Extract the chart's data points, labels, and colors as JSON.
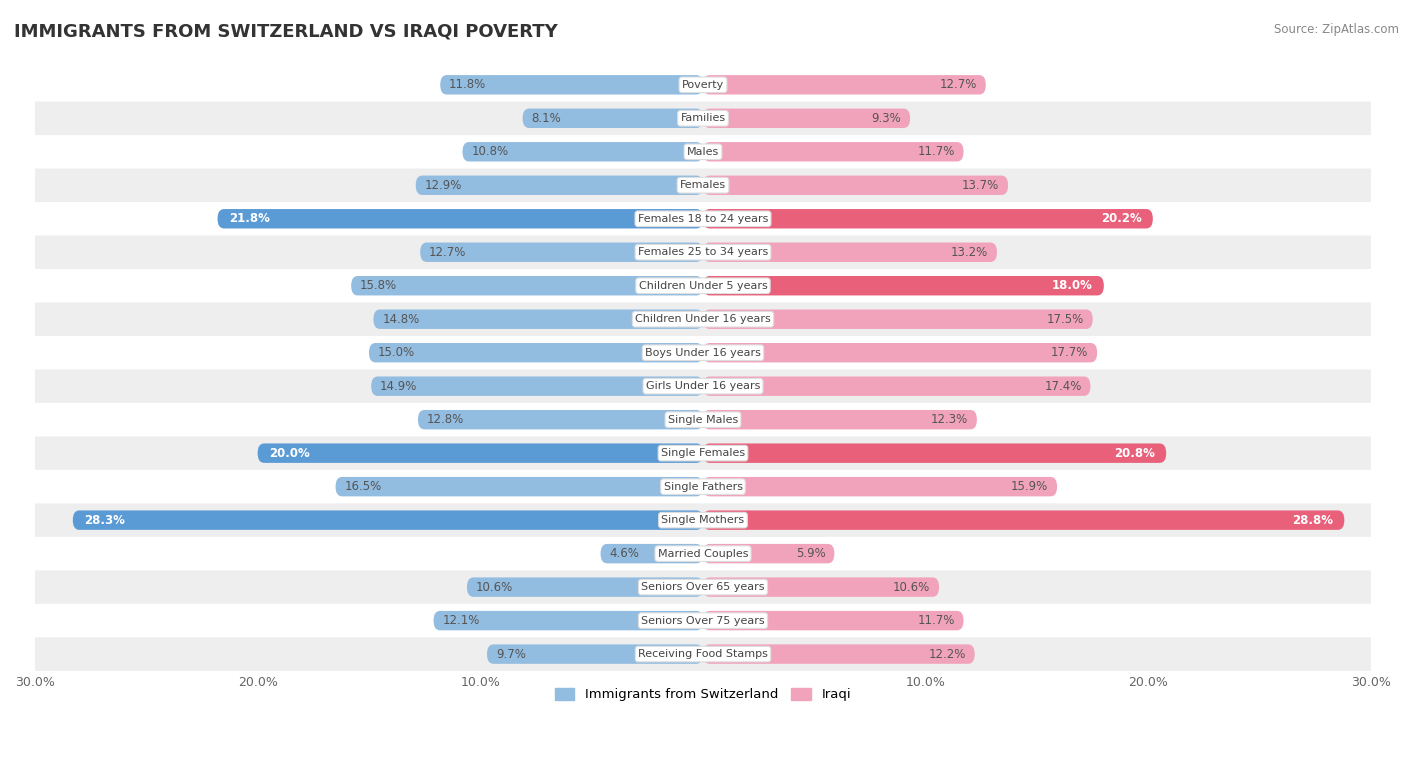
{
  "title": "IMMIGRANTS FROM SWITZERLAND VS IRAQI POVERTY",
  "source": "Source: ZipAtlas.com",
  "categories": [
    "Poverty",
    "Families",
    "Males",
    "Females",
    "Females 18 to 24 years",
    "Females 25 to 34 years",
    "Children Under 5 years",
    "Children Under 16 years",
    "Boys Under 16 years",
    "Girls Under 16 years",
    "Single Males",
    "Single Females",
    "Single Fathers",
    "Single Mothers",
    "Married Couples",
    "Seniors Over 65 years",
    "Seniors Over 75 years",
    "Receiving Food Stamps"
  ],
  "swiss_values": [
    11.8,
    8.1,
    10.8,
    12.9,
    21.8,
    12.7,
    15.8,
    14.8,
    15.0,
    14.9,
    12.8,
    20.0,
    16.5,
    28.3,
    4.6,
    10.6,
    12.1,
    9.7
  ],
  "iraqi_values": [
    12.7,
    9.3,
    11.7,
    13.7,
    20.2,
    13.2,
    18.0,
    17.5,
    17.7,
    17.4,
    12.3,
    20.8,
    15.9,
    28.8,
    5.9,
    10.6,
    11.7,
    12.2
  ],
  "swiss_color": "#92bce0",
  "iraqi_color": "#f2a3bc",
  "swiss_highlight_color": "#5b9bd5",
  "iraqi_highlight_color": "#e8607a",
  "max_val": 30.0,
  "legend_swiss": "Immigrants from Switzerland",
  "legend_iraqi": "Iraqi",
  "highlight_swiss": [
    4,
    11,
    13
  ],
  "highlight_iraqi": [
    4,
    6,
    11,
    13
  ]
}
